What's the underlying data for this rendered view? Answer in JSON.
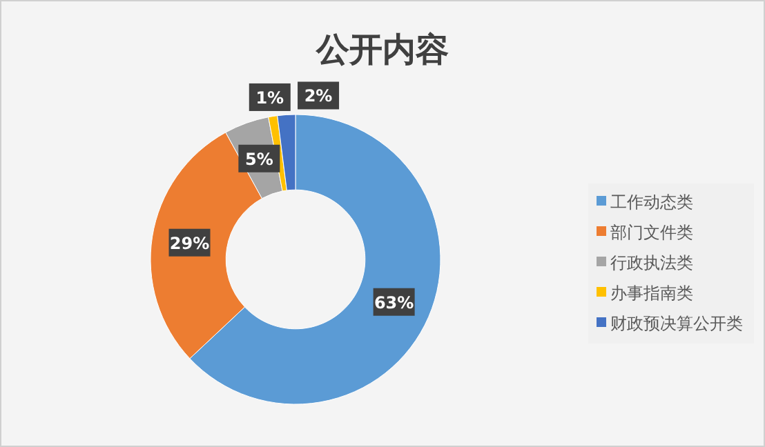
{
  "chart_data": {
    "type": "donut",
    "title": "公开内容",
    "categories": [
      "工作动态类",
      "部门文件类",
      "行政执法类",
      "办事指南类",
      "财政预决算公开类"
    ],
    "values": [
      63,
      29,
      5,
      1,
      2
    ],
    "colors": [
      "#5b9bd5",
      "#ed7d31",
      "#a5a5a5",
      "#ffc000",
      "#4472c4"
    ],
    "value_labels": [
      "63%",
      "29%",
      "5%",
      "1%",
      "2%"
    ],
    "legend": "right"
  }
}
